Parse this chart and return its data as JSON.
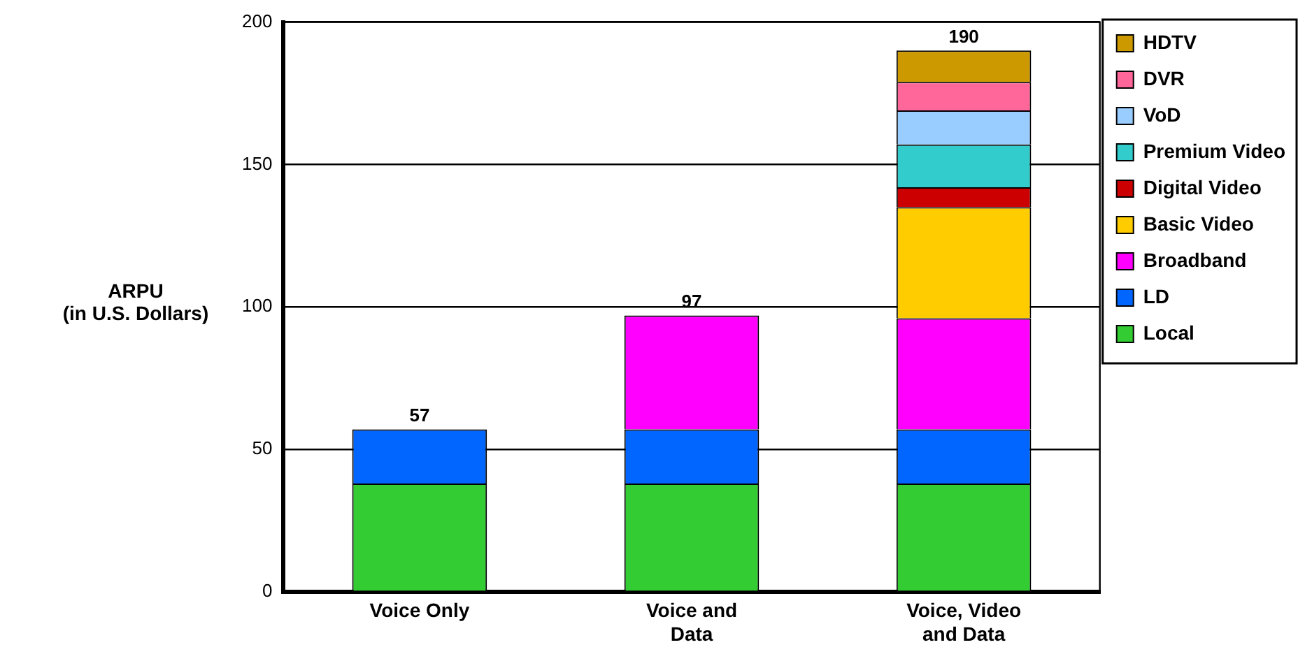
{
  "chart_data": {
    "type": "bar",
    "ylabel": "ARPU\n(in U.S. Dollars)",
    "categories": [
      "Voice Only",
      "Voice and Data",
      "Voice, Video and Data"
    ],
    "stacked": true,
    "series": [
      {
        "name": "Local",
        "color": "#33cc33",
        "values": [
          38,
          38,
          38
        ]
      },
      {
        "name": "LD",
        "color": "#0066ff",
        "values": [
          19,
          19,
          19
        ]
      },
      {
        "name": "Broadband",
        "color": "#ff00ff",
        "values": [
          null,
          40,
          39
        ]
      },
      {
        "name": "Basic Video",
        "color": "#ffcc00",
        "values": [
          null,
          null,
          39
        ]
      },
      {
        "name": "Digital Video",
        "color": "#cc0000",
        "values": [
          null,
          null,
          7
        ]
      },
      {
        "name": "Premium Video",
        "color": "#33cccc",
        "values": [
          null,
          null,
          15
        ]
      },
      {
        "name": "VoD",
        "color": "#99ccff",
        "values": [
          null,
          null,
          12
        ]
      },
      {
        "name": "DVR",
        "color": "#ff6699",
        "values": [
          null,
          null,
          10
        ]
      },
      {
        "name": "HDTV",
        "color": "#cc9900",
        "values": [
          null,
          null,
          11
        ]
      }
    ],
    "totals": [
      "57",
      "97",
      "190"
    ],
    "ylim": [
      0,
      200
    ],
    "yticks": [
      0,
      50,
      100,
      150,
      200
    ],
    "grid": "y",
    "legend": "right"
  }
}
